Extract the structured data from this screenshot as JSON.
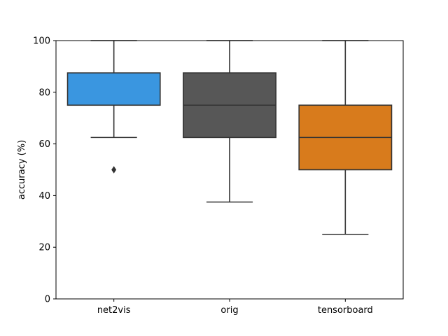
{
  "chart_data": {
    "type": "boxplot",
    "title": "",
    "xlabel": "",
    "ylabel": "accuracy (%)",
    "ylim": [
      0,
      100
    ],
    "yticks": [
      0,
      20,
      40,
      60,
      80,
      100
    ],
    "grid": false,
    "legend": "none",
    "categories": [
      "net2vis",
      "orig",
      "tensorboard"
    ],
    "boxes": [
      {
        "category": "net2vis",
        "color": "#3a96e0",
        "whisker_low": 62.5,
        "q1": 75,
        "median": 75,
        "q3": 87.5,
        "whisker_high": 100,
        "outliers": [
          50
        ]
      },
      {
        "category": "orig",
        "color": "#575757",
        "whisker_low": 37.5,
        "q1": 62.5,
        "median": 75,
        "q3": 87.5,
        "whisker_high": 100,
        "outliers": []
      },
      {
        "category": "tensorboard",
        "color": "#d87b1c",
        "whisker_low": 25,
        "q1": 50,
        "median": 62.5,
        "q3": 75,
        "whisker_high": 100,
        "outliers": []
      }
    ],
    "line_color": "#333333"
  }
}
